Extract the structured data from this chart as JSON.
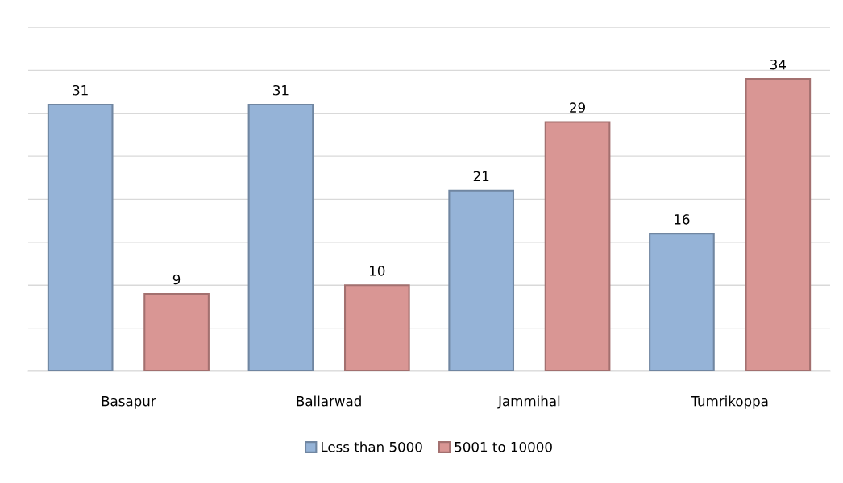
{
  "chart_data": {
    "type": "bar",
    "categories": [
      "Basapur",
      "Ballarwad",
      "Jammihal",
      "Tumrikoppa"
    ],
    "series": [
      {
        "name": "Less than 5000",
        "color": "#95b3d7",
        "values": [
          31,
          31,
          21,
          16
        ]
      },
      {
        "name": "5001 to 10000",
        "color": "#d99694",
        "values": [
          9,
          10,
          29,
          34
        ]
      }
    ],
    "ylim": [
      0,
      40
    ],
    "yticks": [
      {
        "value": 0,
        "label": null
      },
      {
        "value": 5,
        "label": null
      },
      {
        "value": 10,
        "label": null
      },
      {
        "value": 15,
        "label": null
      },
      {
        "value": 20,
        "label": null
      },
      {
        "value": 25,
        "label": null
      },
      {
        "value": 30,
        "label": null
      },
      {
        "value": 35,
        "label": null
      },
      {
        "value": 40,
        "label": null
      }
    ],
    "tick_labels": "x",
    "grid": "y",
    "legend": "bottom",
    "data_labels": true
  }
}
